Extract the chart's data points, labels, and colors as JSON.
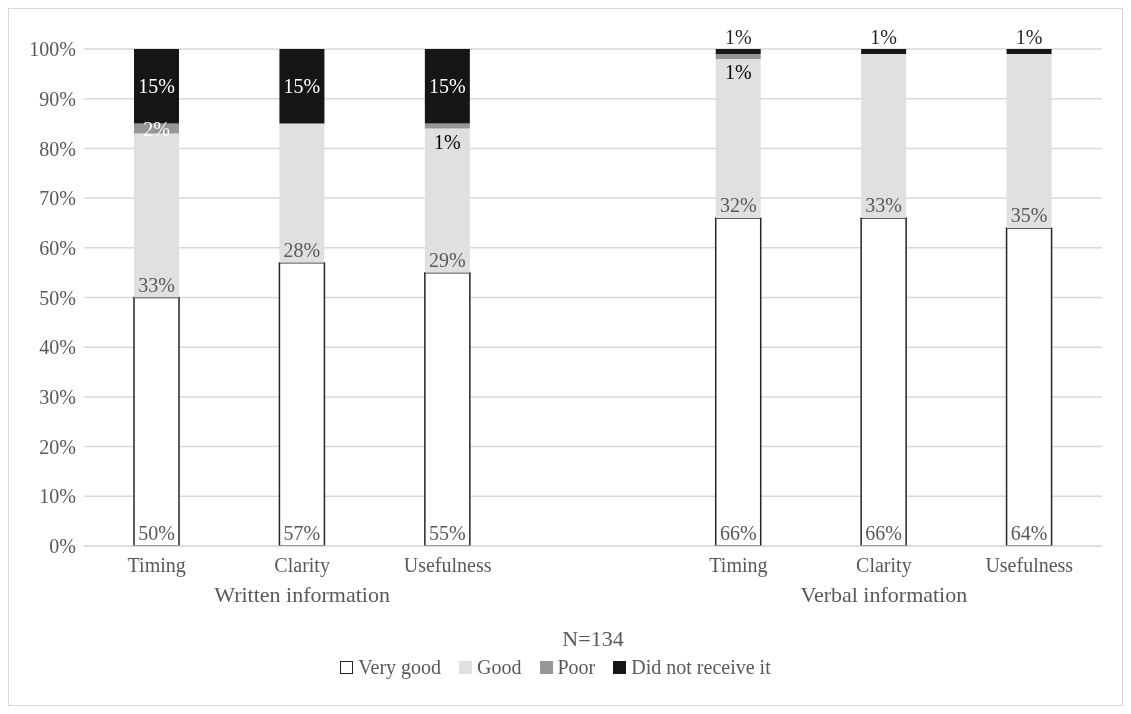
{
  "chart_data": {
    "type": "bar",
    "stacked": true,
    "xlabel": "N=134",
    "categories": [
      "Timing",
      "Clarity",
      "Usefulness",
      null,
      "Timing",
      "Clarity",
      "Usefulness"
    ],
    "annotations": [
      "Written information",
      "Verbal information"
    ],
    "series": [
      {
        "name": "Very good",
        "color": "#ffffff",
        "values": [
          50,
          57,
          55,
          null,
          66,
          66,
          64
        ],
        "value_labels": [
          "50%",
          "57%",
          "55%",
          null,
          "66%",
          "66%",
          "64%"
        ]
      },
      {
        "name": "Good",
        "color": "#e0e0e0",
        "values": [
          33,
          28,
          29,
          null,
          32,
          33,
          35
        ],
        "value_labels": [
          "33%",
          "28%",
          "29%",
          null,
          "32%",
          "33%",
          "35%"
        ]
      },
      {
        "name": "Poor",
        "color": "#969696",
        "values": [
          2,
          0,
          1,
          null,
          1,
          0,
          0
        ],
        "value_labels": [
          "2%",
          null,
          "1%",
          null,
          "1%",
          null,
          null
        ]
      },
      {
        "name": "Did not receive it",
        "color": "#161616",
        "values": [
          15,
          15,
          15,
          null,
          1,
          1,
          1
        ],
        "value_labels": [
          "15%",
          "15%",
          "15%",
          null,
          "1%",
          "1%",
          "1%"
        ]
      }
    ],
    "ylim": [
      0,
      100
    ],
    "yticks": [
      {
        "value": 0,
        "label": "0%"
      },
      {
        "value": 10,
        "label": "10%"
      },
      {
        "value": 20,
        "label": "20%"
      },
      {
        "value": 30,
        "label": "30%"
      },
      {
        "value": 40,
        "label": "40%"
      },
      {
        "value": 50,
        "label": "50%"
      },
      {
        "value": 60,
        "label": "60%"
      },
      {
        "value": 70,
        "label": "70%"
      },
      {
        "value": 80,
        "label": "80%"
      },
      {
        "value": 90,
        "label": "90%"
      },
      {
        "value": 100,
        "label": "100%"
      }
    ],
    "grid": "y",
    "legend": "bottom"
  }
}
